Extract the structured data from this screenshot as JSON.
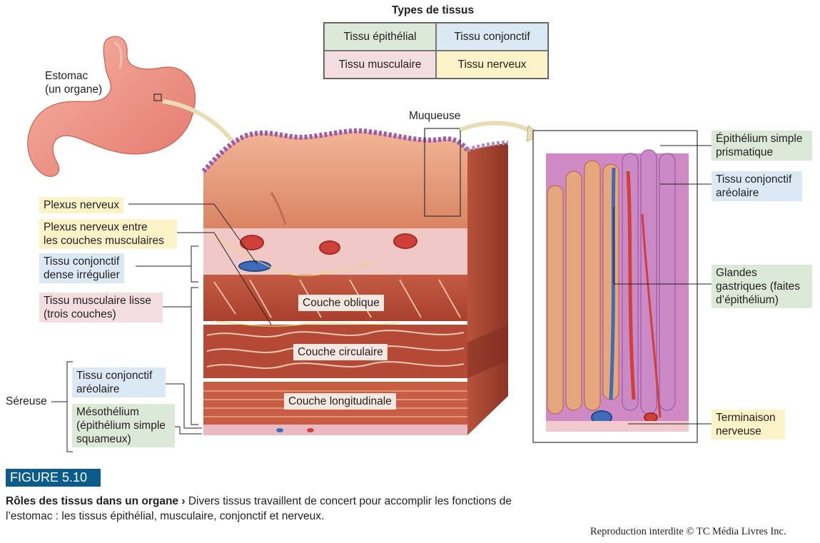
{
  "legend": {
    "title": "Types de tissus",
    "cells": [
      {
        "label": "Tissu épithélial",
        "color": "#dce8d8"
      },
      {
        "label": "Tissu conjonctif",
        "color": "#dbe9f5"
      },
      {
        "label": "Tissu musculaire",
        "color": "#f3dde1"
      },
      {
        "label": "Tissu nerveux",
        "color": "#fdf3c8"
      }
    ]
  },
  "labels": {
    "estomac": "Estomac\n(un organe)",
    "muqueuse": "Muqueuse",
    "plexus_nerveux": "Plexus nerveux",
    "plexus_entre": "Plexus nerveux entre\nles couches musculaires",
    "tissu_conj_dense": "Tissu conjonctif\ndense irrégulier",
    "tissu_musc_lisse": "Tissu musculaire lisse\n(trois couches)",
    "sereuse": "Séreuse",
    "tissu_conj_areolaire_left": "Tissu conjonctif\naréolaire",
    "mesothelium": "Mésothélium\n(épithélium simple\nsquameux)",
    "couche_oblique": "Couche oblique",
    "couche_circulaire": "Couche circulaire",
    "couche_longitudinale": "Couche longitudinale",
    "epithelium_simple": "Épithélium simple\nprismatique",
    "tissu_conj_areolaire_right": "Tissu conjonctif\naréolaire",
    "glandes": "Glandes\ngastriques (faites\nd’épithélium)",
    "terminaison": "Terminaison\nnerveuse"
  },
  "figure": {
    "badge": "FIGURE 5.10",
    "caption_title": "Rôles des tissus dans un organe",
    "caption_arrow": "›",
    "caption_text": "Divers tissus travaillent de concert pour accomplir les fonctions de l’estomac : les tissus épithélial, musculaire, conjonctif et nerveux.",
    "copyright": "Reproduction interdite © TC Média Livres Inc."
  }
}
